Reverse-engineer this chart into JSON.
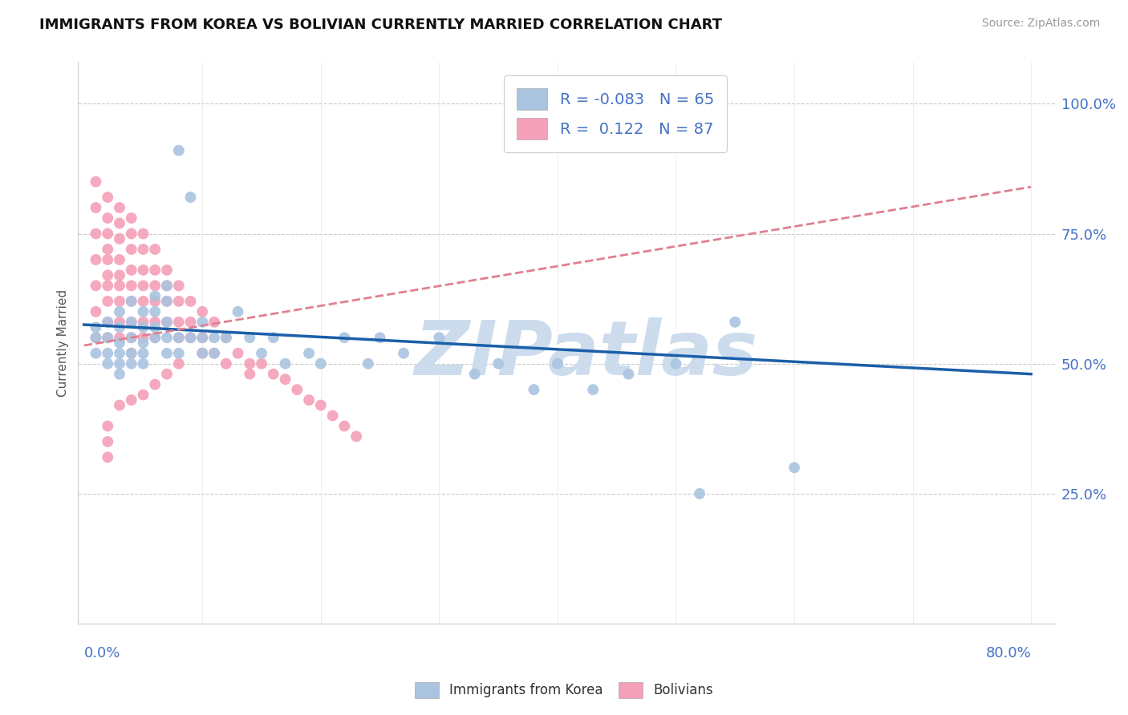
{
  "title": "IMMIGRANTS FROM KOREA VS BOLIVIAN CURRENTLY MARRIED CORRELATION CHART",
  "source": "Source: ZipAtlas.com",
  "ylabel": "Currently Married",
  "xlim": [
    0.0,
    0.8
  ],
  "ylim": [
    0.0,
    1.05
  ],
  "yticks": [
    0.25,
    0.5,
    0.75,
    1.0
  ],
  "ytick_labels": [
    "25.0%",
    "50.0%",
    "75.0%",
    "100.0%"
  ],
  "korea_color": "#aac4e0",
  "bolivian_color": "#f4a0b8",
  "korea_line_color": "#1a5fa8",
  "bolivian_line_color": "#e08090",
  "watermark": "ZIPatlas",
  "watermark_color": "#ccdcec",
  "korea_R": -0.083,
  "korea_N": 65,
  "bolivian_R": 0.122,
  "bolivian_N": 87,
  "korea_x": [
    0.01,
    0.01,
    0.01,
    0.02,
    0.02,
    0.02,
    0.02,
    0.03,
    0.03,
    0.03,
    0.03,
    0.03,
    0.03,
    0.04,
    0.04,
    0.04,
    0.04,
    0.04,
    0.05,
    0.05,
    0.05,
    0.05,
    0.05,
    0.06,
    0.06,
    0.06,
    0.06,
    0.07,
    0.07,
    0.07,
    0.07,
    0.07,
    0.08,
    0.08,
    0.08,
    0.09,
    0.09,
    0.1,
    0.1,
    0.1,
    0.11,
    0.11,
    0.12,
    0.13,
    0.14,
    0.15,
    0.16,
    0.17,
    0.19,
    0.2,
    0.22,
    0.24,
    0.25,
    0.27,
    0.3,
    0.33,
    0.35,
    0.38,
    0.4,
    0.43,
    0.46,
    0.5,
    0.52,
    0.55,
    0.6
  ],
  "korea_y": [
    0.57,
    0.55,
    0.52,
    0.58,
    0.55,
    0.52,
    0.5,
    0.6,
    0.57,
    0.54,
    0.52,
    0.5,
    0.48,
    0.62,
    0.58,
    0.55,
    0.52,
    0.5,
    0.6,
    0.57,
    0.54,
    0.52,
    0.5,
    0.63,
    0.6,
    0.57,
    0.55,
    0.65,
    0.62,
    0.58,
    0.55,
    0.52,
    0.91,
    0.55,
    0.52,
    0.82,
    0.55,
    0.58,
    0.55,
    0.52,
    0.55,
    0.52,
    0.55,
    0.6,
    0.55,
    0.52,
    0.55,
    0.5,
    0.52,
    0.5,
    0.55,
    0.5,
    0.55,
    0.52,
    0.55,
    0.48,
    0.5,
    0.45,
    0.5,
    0.45,
    0.48,
    0.5,
    0.25,
    0.58,
    0.3
  ],
  "bolivian_x": [
    0.01,
    0.01,
    0.01,
    0.01,
    0.01,
    0.01,
    0.01,
    0.02,
    0.02,
    0.02,
    0.02,
    0.02,
    0.02,
    0.02,
    0.02,
    0.02,
    0.02,
    0.03,
    0.03,
    0.03,
    0.03,
    0.03,
    0.03,
    0.03,
    0.03,
    0.03,
    0.04,
    0.04,
    0.04,
    0.04,
    0.04,
    0.04,
    0.04,
    0.04,
    0.04,
    0.05,
    0.05,
    0.05,
    0.05,
    0.05,
    0.05,
    0.05,
    0.06,
    0.06,
    0.06,
    0.06,
    0.06,
    0.06,
    0.07,
    0.07,
    0.07,
    0.07,
    0.08,
    0.08,
    0.08,
    0.08,
    0.09,
    0.09,
    0.09,
    0.1,
    0.1,
    0.11,
    0.11,
    0.12,
    0.13,
    0.14,
    0.15,
    0.16,
    0.17,
    0.18,
    0.19,
    0.2,
    0.21,
    0.22,
    0.23,
    0.14,
    0.12,
    0.1,
    0.08,
    0.07,
    0.06,
    0.05,
    0.04,
    0.03,
    0.02,
    0.02,
    0.02
  ],
  "bolivian_y": [
    0.85,
    0.8,
    0.75,
    0.7,
    0.65,
    0.6,
    0.55,
    0.82,
    0.78,
    0.75,
    0.72,
    0.7,
    0.67,
    0.65,
    0.62,
    0.58,
    0.55,
    0.8,
    0.77,
    0.74,
    0.7,
    0.67,
    0.65,
    0.62,
    0.58,
    0.55,
    0.78,
    0.75,
    0.72,
    0.68,
    0.65,
    0.62,
    0.58,
    0.55,
    0.52,
    0.75,
    0.72,
    0.68,
    0.65,
    0.62,
    0.58,
    0.55,
    0.72,
    0.68,
    0.65,
    0.62,
    0.58,
    0.55,
    0.68,
    0.65,
    0.62,
    0.58,
    0.65,
    0.62,
    0.58,
    0.55,
    0.62,
    0.58,
    0.55,
    0.6,
    0.55,
    0.58,
    0.52,
    0.55,
    0.52,
    0.5,
    0.5,
    0.48,
    0.47,
    0.45,
    0.43,
    0.42,
    0.4,
    0.38,
    0.36,
    0.48,
    0.5,
    0.52,
    0.5,
    0.48,
    0.46,
    0.44,
    0.43,
    0.42,
    0.38,
    0.35,
    0.32
  ],
  "korea_line_x": [
    0.0,
    0.8
  ],
  "korea_line_y": [
    0.575,
    0.48
  ],
  "bolivian_line_x": [
    0.0,
    0.8
  ],
  "bolivian_line_y": [
    0.535,
    0.84
  ]
}
